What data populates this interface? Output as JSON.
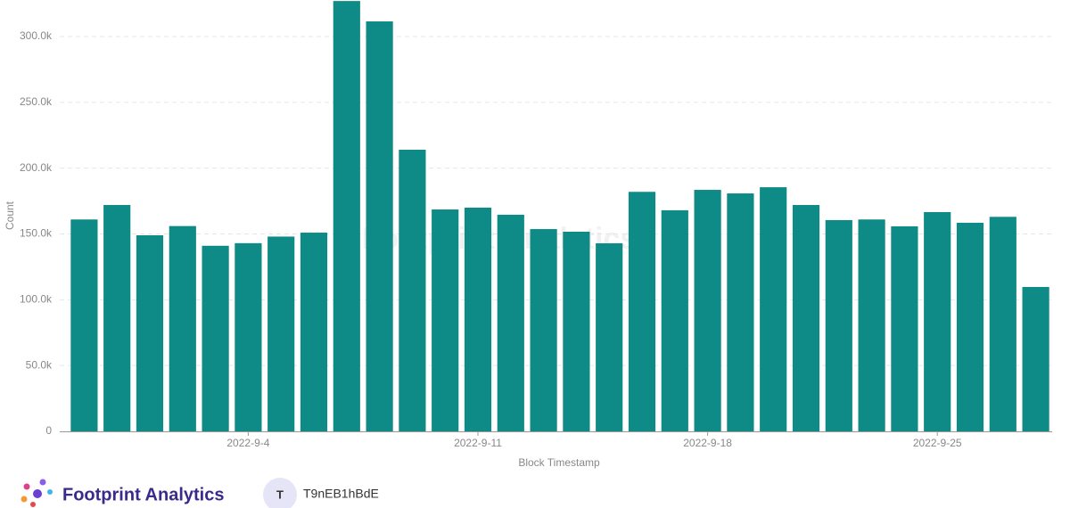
{
  "chart_data": {
    "type": "bar",
    "x_label": "Block Timestamp",
    "y_label": "Count",
    "categories": [
      null,
      null,
      null,
      null,
      null,
      "2022-9-4",
      null,
      null,
      null,
      null,
      null,
      null,
      "2022-9-11",
      null,
      null,
      null,
      null,
      null,
      null,
      "2022-9-18",
      null,
      null,
      null,
      null,
      null,
      null,
      "2022-9-25",
      null,
      null,
      null
    ],
    "values": [
      161000,
      172000,
      149000,
      156000,
      141000,
      143000,
      148000,
      151000,
      327000,
      311500,
      214000,
      168600,
      170000,
      164600,
      153700,
      151700,
      142900,
      182000,
      168000,
      183500,
      180800,
      185500,
      172000,
      160500,
      161000,
      155800,
      166600,
      158500,
      163000,
      109700
    ],
    "color": "#0f8b87",
    "ylim": [
      0,
      327000
    ],
    "yticks": [
      0,
      {
        "value": 50000,
        "label": "50.0k"
      },
      {
        "value": 100000,
        "label": "100.0k"
      },
      {
        "value": 150000,
        "label": "150.0k"
      },
      {
        "value": 200000,
        "label": "200.0k"
      },
      {
        "value": 250000,
        "label": "250.0k"
      },
      {
        "value": 300000,
        "label": "300.0k"
      }
    ],
    "grid": true
  },
  "watermark": "Footprint Analytics",
  "footer": {
    "brand": "Footprint Analytics",
    "avatar": "T",
    "user": "T9nEB1hBdE"
  }
}
